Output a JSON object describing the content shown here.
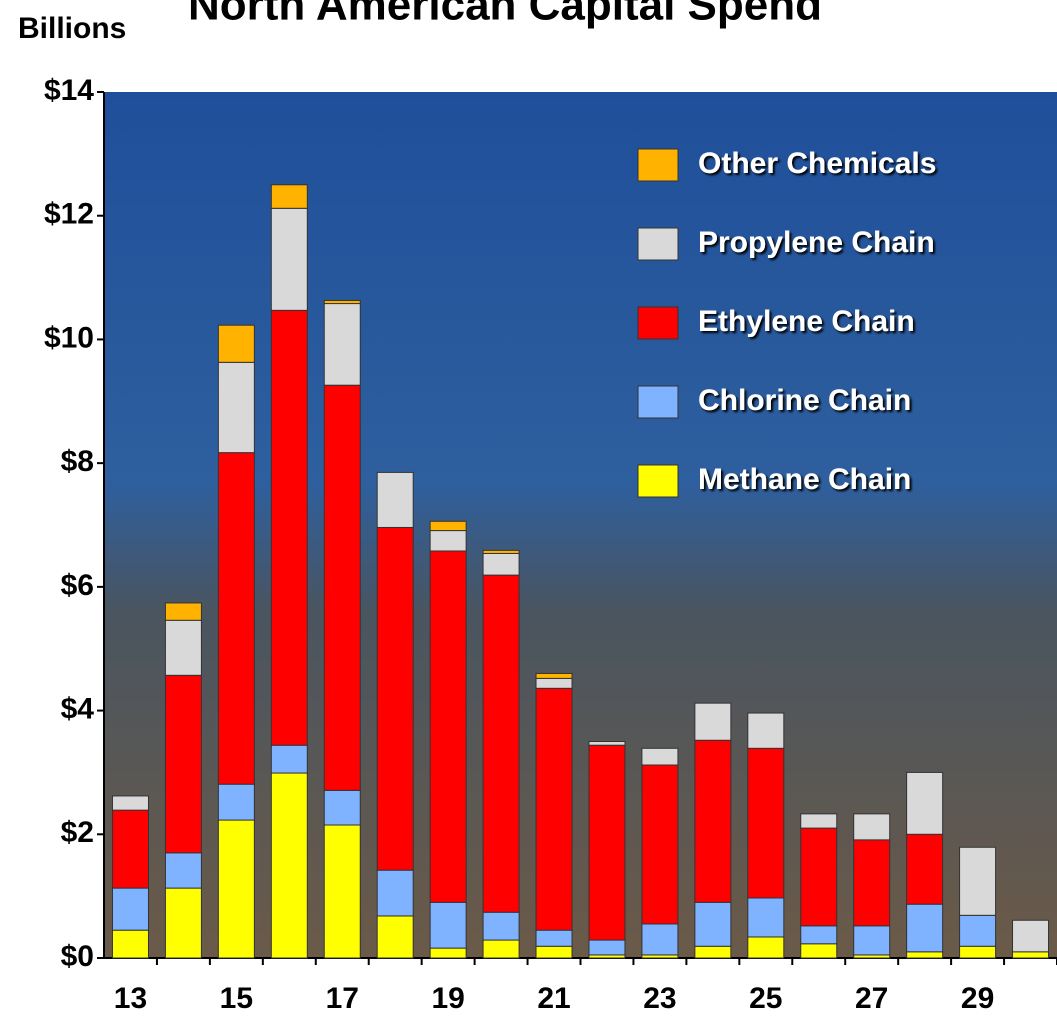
{
  "chart_data": {
    "type": "stacked_bar",
    "title": "North American Capital Spend",
    "ylabel": "Billions",
    "categories": [
      "13",
      null,
      "15",
      null,
      "17",
      null,
      "19",
      null,
      "21",
      null,
      "23",
      null,
      "25",
      null,
      "27",
      null,
      "29",
      null
    ],
    "series": [
      {
        "name": "Methane Chain",
        "color": "#ffff00",
        "values": [
          0.45,
          1.13,
          2.23,
          2.99,
          2.15,
          0.68,
          0.16,
          0.29,
          0.19,
          0.05,
          0.05,
          0.19,
          0.34,
          0.23,
          0.05,
          0.1,
          0.19,
          0.1
        ]
      },
      {
        "name": "Chlorine Chain",
        "color": "#7fb2ff",
        "values": [
          0.68,
          0.57,
          0.58,
          0.45,
          0.56,
          0.74,
          0.74,
          0.45,
          0.26,
          0.24,
          0.5,
          0.71,
          0.63,
          0.29,
          0.47,
          0.77,
          0.5,
          0
        ]
      },
      {
        "name": "Ethylene Chain",
        "color": "#ff0000",
        "values": [
          1.26,
          2.87,
          5.36,
          7.03,
          6.55,
          5.54,
          5.68,
          5.45,
          3.91,
          3.15,
          2.57,
          2.62,
          2.42,
          1.58,
          1.39,
          1.13,
          0,
          0
        ]
      },
      {
        "name": "Propylene Chain",
        "color": "#d9d9d9",
        "values": [
          0.23,
          0.89,
          1.46,
          1.65,
          1.32,
          0.89,
          0.33,
          0.35,
          0.16,
          0.06,
          0.27,
          0.6,
          0.57,
          0.23,
          0.42,
          1.0,
          1.1,
          0.51
        ]
      },
      {
        "name": "Other Chemicals",
        "color": "#ffb300",
        "values": [
          0,
          0.28,
          0.6,
          0.38,
          0.05,
          0,
          0.15,
          0.05,
          0.08,
          0,
          0,
          0,
          0,
          0,
          0,
          0,
          0,
          0
        ]
      }
    ],
    "ylim": [
      0,
      14
    ],
    "yticks": [
      {
        "value": 0,
        "label": "$0"
      },
      {
        "value": 2,
        "label": "$2"
      },
      {
        "value": 4,
        "label": "$4"
      },
      {
        "value": 6,
        "label": "$6"
      },
      {
        "value": 8,
        "label": "$8"
      },
      {
        "value": 10,
        "label": "$10"
      },
      {
        "value": 12,
        "label": "$12"
      },
      {
        "value": 14,
        "label": "$14"
      }
    ],
    "legend": "upper right"
  }
}
